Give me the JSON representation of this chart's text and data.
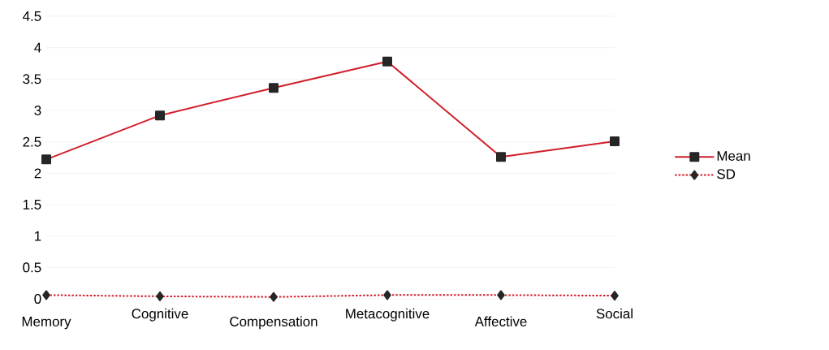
{
  "chart_data": {
    "type": "line",
    "categories": [
      "Memory",
      "Cognitive",
      "Compensation",
      "Metacognitive",
      "Affective",
      "Social"
    ],
    "series": [
      {
        "name": "Mean",
        "color": "#d01f2b",
        "marker": "square",
        "line_style": "solid",
        "values": [
          2.22,
          2.92,
          3.36,
          3.78,
          2.26,
          2.51
        ]
      },
      {
        "name": "SD",
        "color": "#d01f2b",
        "marker": "diamond",
        "line_style": "dotted",
        "values": [
          0.06,
          0.04,
          0.03,
          0.06,
          0.06,
          0.05
        ]
      }
    ],
    "ylim": [
      0,
      4.5
    ],
    "yticks": [
      0,
      0.5,
      1,
      1.5,
      2,
      2.5,
      3,
      3.5,
      4,
      4.5
    ],
    "grid": "y",
    "legend": "right"
  }
}
